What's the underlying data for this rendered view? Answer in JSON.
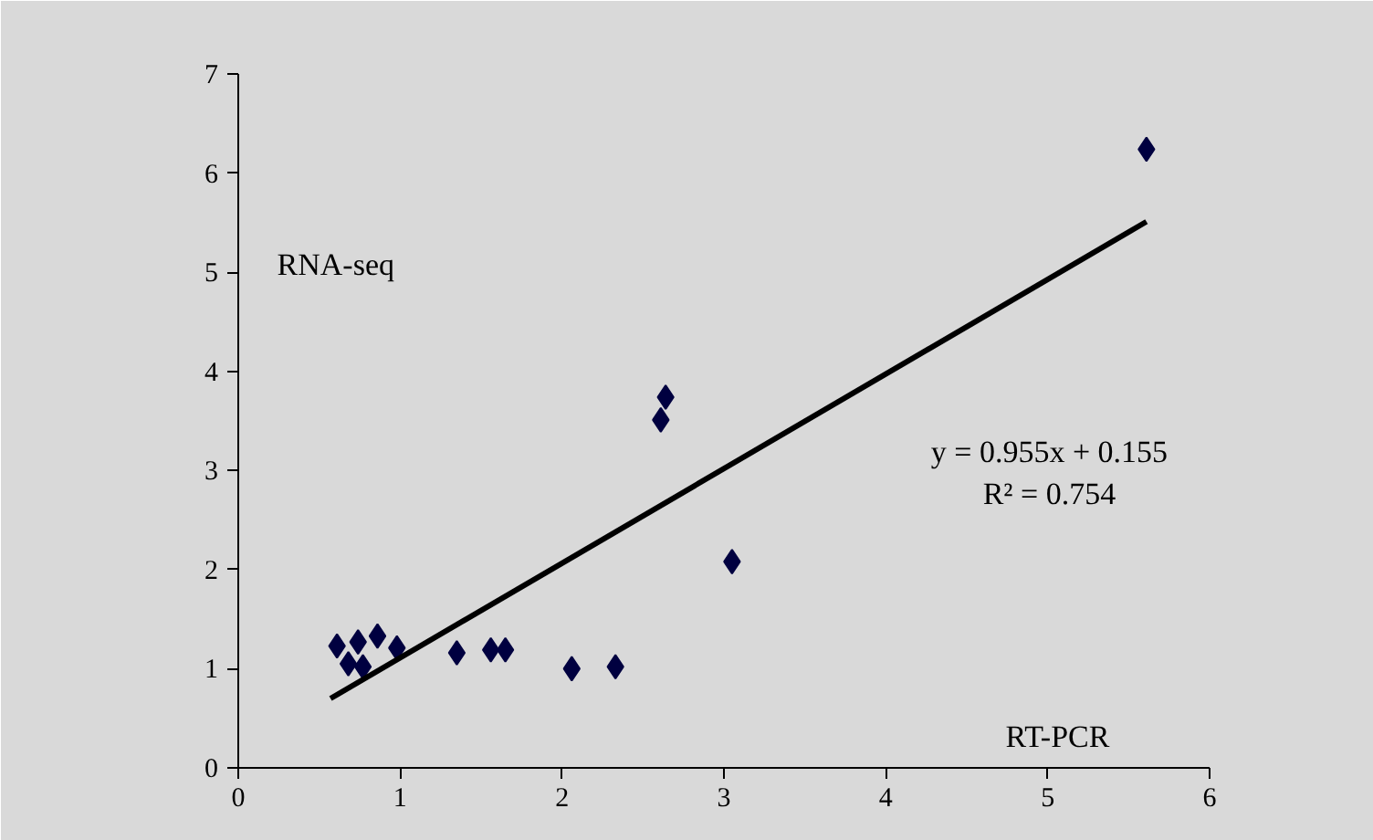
{
  "chart_data": {
    "type": "scatter",
    "xlabel": "RT-PCR",
    "ylabel": "RNA-seq",
    "grid": false,
    "xlim": [
      0,
      6
    ],
    "ylim": [
      0,
      7
    ],
    "xticks": [
      0,
      1,
      2,
      3,
      4,
      5,
      6
    ],
    "yticks": [
      0,
      1,
      2,
      3,
      4,
      5,
      6,
      7
    ],
    "annotations": [
      "y = 0.955x + 0.155",
      "R² = 0.754"
    ],
    "series": [
      {
        "marker": "diamond",
        "color": "#000040",
        "x": [
          0.61,
          0.74,
          0.86,
          0.98,
          0.68,
          0.77,
          1.35,
          1.56,
          1.65,
          2.06,
          2.33,
          2.61,
          2.64,
          3.05,
          5.61
        ],
        "values": [
          1.23,
          1.27,
          1.33,
          1.21,
          1.05,
          1.02,
          1.16,
          1.19,
          1.19,
          1.0,
          1.02,
          3.51,
          3.74,
          2.08,
          6.24
        ]
      },
      {
        "type": "line",
        "marker": "none",
        "color": "#000000",
        "x": [
          0.57,
          5.61
        ],
        "values": [
          0.7,
          5.51
        ]
      }
    ]
  }
}
